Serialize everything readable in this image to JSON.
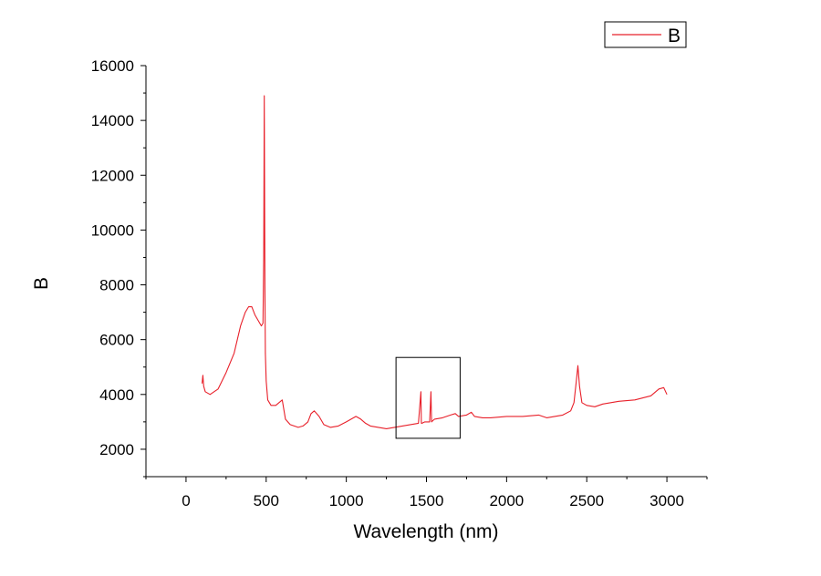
{
  "chart_data": {
    "type": "line",
    "title": "",
    "xlabel": "Wavelength (nm)",
    "ylabel": "B",
    "xlim": [
      -250,
      3250
    ],
    "ylim": [
      1000,
      16000
    ],
    "xticks": [
      0,
      500,
      1000,
      1500,
      2000,
      2500,
      3000
    ],
    "xtick_labels": [
      "0",
      "500",
      "1000",
      "1500",
      "2000",
      "2500",
      "3000"
    ],
    "yticks": [
      2000,
      4000,
      6000,
      8000,
      10000,
      12000,
      14000,
      16000
    ],
    "ytick_labels": [
      "2000",
      "4000",
      "6000",
      "8000",
      "10000",
      "12000",
      "14000",
      "16000"
    ],
    "grid": false,
    "legend": {
      "position": "top-right",
      "entries": [
        "B"
      ]
    },
    "series": [
      {
        "name": "B",
        "color": "#e8202a",
        "x": [
          100,
          105,
          110,
          120,
          150,
          200,
          250,
          300,
          340,
          370,
          390,
          410,
          430,
          450,
          470,
          480,
          485,
          488,
          490,
          492,
          495,
          500,
          510,
          530,
          560,
          600,
          620,
          650,
          700,
          730,
          760,
          780,
          800,
          830,
          860,
          900,
          950,
          1000,
          1030,
          1060,
          1090,
          1120,
          1150,
          1200,
          1250,
          1300,
          1350,
          1400,
          1450,
          1465,
          1468,
          1472,
          1490,
          1520,
          1528,
          1532,
          1550,
          1600,
          1650,
          1680,
          1700,
          1750,
          1780,
          1800,
          1850,
          1900,
          2000,
          2100,
          2200,
          2250,
          2300,
          2350,
          2400,
          2420,
          2435,
          2445,
          2455,
          2470,
          2500,
          2550,
          2600,
          2700,
          2800,
          2900,
          2950,
          2980,
          3000
        ],
        "y": [
          4400,
          4700,
          4300,
          4100,
          4000,
          4200,
          4800,
          5500,
          6500,
          7000,
          7200,
          7200,
          6900,
          6700,
          6500,
          6600,
          9000,
          14900,
          12000,
          8000,
          5500,
          4500,
          3800,
          3600,
          3600,
          3800,
          3100,
          2900,
          2800,
          2850,
          3000,
          3300,
          3400,
          3200,
          2900,
          2800,
          2850,
          3000,
          3100,
          3200,
          3100,
          2950,
          2850,
          2800,
          2750,
          2800,
          2850,
          2900,
          2950,
          4100,
          2950,
          2950,
          3000,
          3000,
          4100,
          3000,
          3100,
          3150,
          3250,
          3300,
          3200,
          3250,
          3350,
          3200,
          3150,
          3150,
          3200,
          3200,
          3250,
          3150,
          3200,
          3250,
          3400,
          3700,
          4500,
          5050,
          4300,
          3700,
          3600,
          3550,
          3650,
          3750,
          3800,
          3950,
          4200,
          4250,
          4000
        ]
      }
    ],
    "annotations": [
      {
        "type": "rectangle",
        "x_range": [
          1310,
          1710
        ],
        "y_range": [
          2400,
          5350
        ]
      }
    ]
  }
}
